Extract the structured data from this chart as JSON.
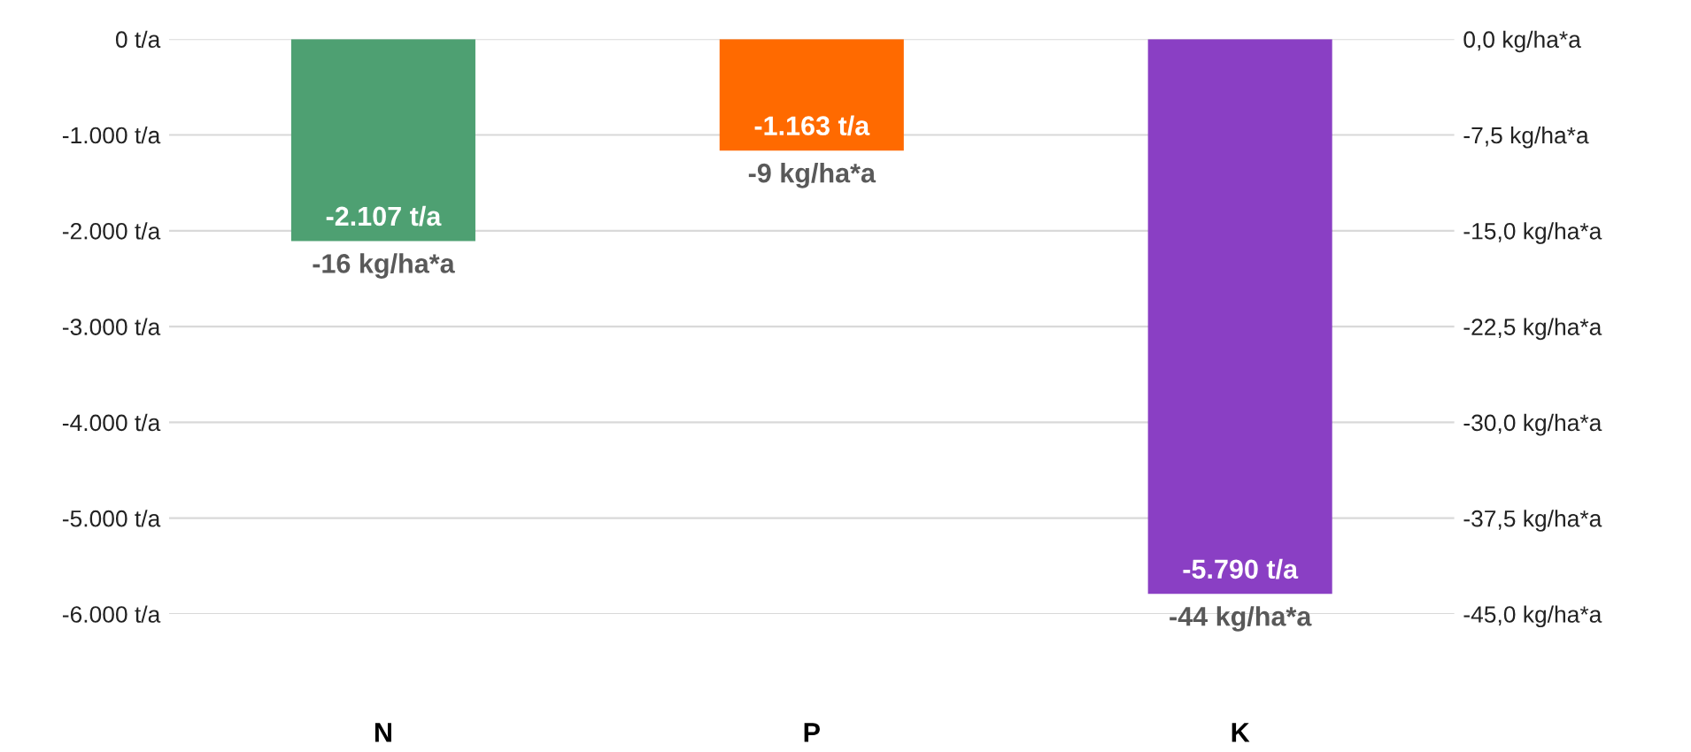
{
  "chart_data": {
    "type": "bar",
    "categories": [
      "N",
      "P",
      "K"
    ],
    "series": [
      {
        "values": [
          -2107,
          -1163,
          -5790
        ],
        "colors": [
          "#4ea072",
          "#ff6a00",
          "#8a3fc4"
        ],
        "value_labels": [
          "-2.107 t/a",
          "-1.163 t/a",
          "-5.790 t/a"
        ]
      }
    ],
    "ylim": [
      -6000,
      0
    ],
    "yticks": [
      {
        "value": 0,
        "label": "0 t/a"
      },
      {
        "value": -1000,
        "label": "-1.000 t/a"
      },
      {
        "value": -2000,
        "label": "-2.000 t/a"
      },
      {
        "value": -3000,
        "label": "-3.000 t/a"
      },
      {
        "value": -4000,
        "label": "-4.000 t/a"
      },
      {
        "value": -5000,
        "label": "-5.000 t/a"
      },
      {
        "value": -6000,
        "label": "-6.000 t/a"
      }
    ],
    "y2lim": [
      -45,
      0
    ],
    "y2ticks": [
      {
        "value": 0,
        "label": "0,0 kg/ha*a"
      },
      {
        "value": -7.5,
        "label": "-7,5 kg/ha*a"
      },
      {
        "value": -15,
        "label": "-15,0 kg/ha*a"
      },
      {
        "value": -22.5,
        "label": "-22,5 kg/ha*a"
      },
      {
        "value": -30,
        "label": "-30,0 kg/ha*a"
      },
      {
        "value": -37.5,
        "label": "-37,5 kg/ha*a"
      },
      {
        "value": -45,
        "label": "-45,0 kg/ha*a"
      }
    ],
    "annotations": [
      {
        "text": "-16 kg/ha*a",
        "x": "N",
        "y": -2107
      },
      {
        "text": "-9 kg/ha*a",
        "x": "P",
        "y": -1163
      },
      {
        "text": "-44 kg/ha*a",
        "x": "K",
        "y": -5790
      }
    ],
    "grid": "y",
    "legend": false
  }
}
